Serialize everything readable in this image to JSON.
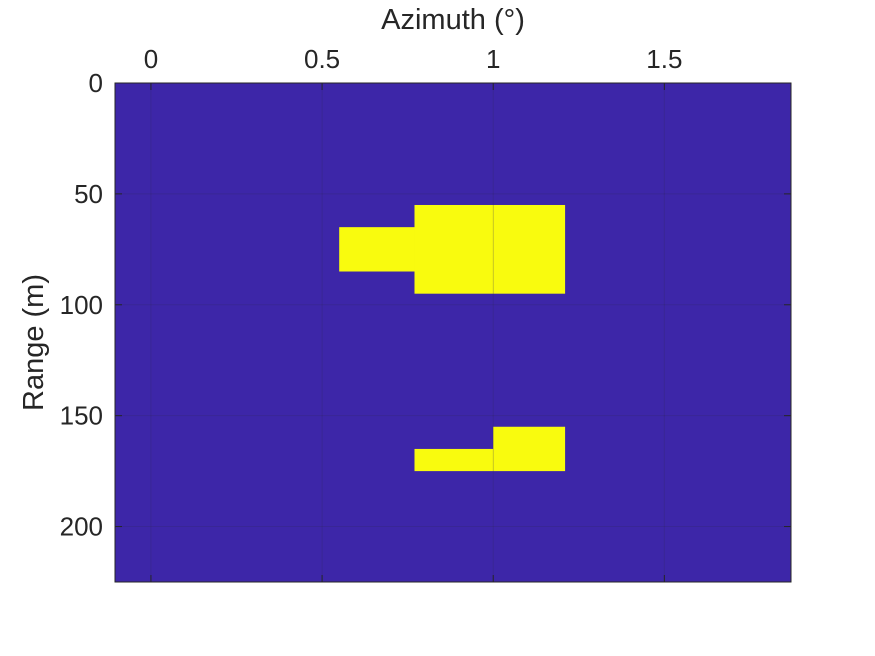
{
  "chart_data": {
    "type": "heatmap",
    "title": "",
    "xlabel": "Azimuth (°)",
    "ylabel": "Range (m)",
    "xaxis_position": "top",
    "yaxis_direction": "reversed",
    "xlim": [
      -0.105,
      1.87
    ],
    "ylim": [
      0,
      225
    ],
    "xticks": [
      0,
      0.5,
      1,
      1.5
    ],
    "xtick_labels": [
      "0",
      "0.5",
      "1",
      "1.5"
    ],
    "yticks": [
      0,
      50,
      100,
      150,
      200
    ],
    "ytick_labels": [
      "0",
      "50",
      "100",
      "150",
      "200"
    ],
    "grid": true,
    "legend": "none",
    "colors": {
      "background": "#3d26a8",
      "detection": "#f9fb0e"
    },
    "values_meaning": "1 = detection (yellow), 0 = no detection (blue)",
    "cells": [
      {
        "az": [
          0.55,
          0.77
        ],
        "range": [
          65,
          85
        ],
        "value": 1
      },
      {
        "az": [
          0.77,
          1.0
        ],
        "range": [
          55,
          95
        ],
        "value": 1
      },
      {
        "az": [
          1.0,
          1.21
        ],
        "range": [
          55,
          95
        ],
        "value": 1
      },
      {
        "az": [
          0.77,
          1.0
        ],
        "range": [
          165,
          175
        ],
        "value": 1
      },
      {
        "az": [
          1.0,
          1.21
        ],
        "range": [
          155,
          175
        ],
        "value": 1
      }
    ]
  }
}
